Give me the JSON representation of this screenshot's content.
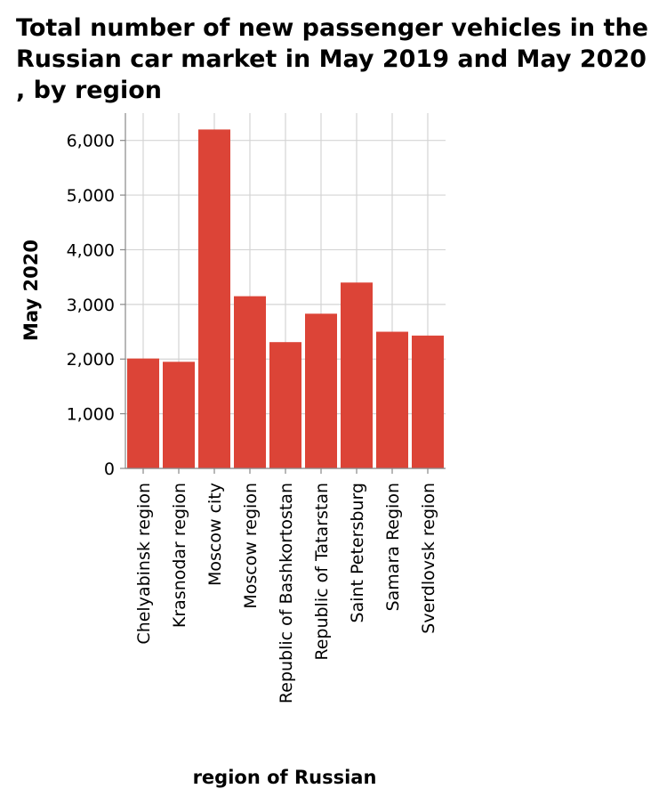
{
  "chart_data": {
    "type": "bar",
    "title": "Total number of new passenger vehicles in the Russian car market in May 2019 and May 2020 , by region",
    "xlabel": "region of Russian",
    "ylabel": "May 2020",
    "categories": [
      "Chelyabinsk region",
      "Krasnodar region",
      "Moscow city",
      "Moscow region",
      "Republic of Bashkortostan",
      "Republic of Tatarstan",
      "Saint Petersburg",
      "Samara Region",
      "Sverdlovsk region"
    ],
    "series": [
      {
        "name": "May 2020",
        "values": [
          2010,
          1950,
          6200,
          3150,
          2310,
          2830,
          3400,
          2500,
          2430
        ]
      }
    ],
    "ylim": [
      0,
      6500
    ],
    "yticks": [
      0,
      1000,
      2000,
      3000,
      4000,
      5000,
      6000
    ],
    "ytick_labels": [
      "0",
      "1,000",
      "2,000",
      "3,000",
      "4,000",
      "5,000",
      "6,000"
    ],
    "grid": true,
    "bar_color": "#dc4437"
  }
}
